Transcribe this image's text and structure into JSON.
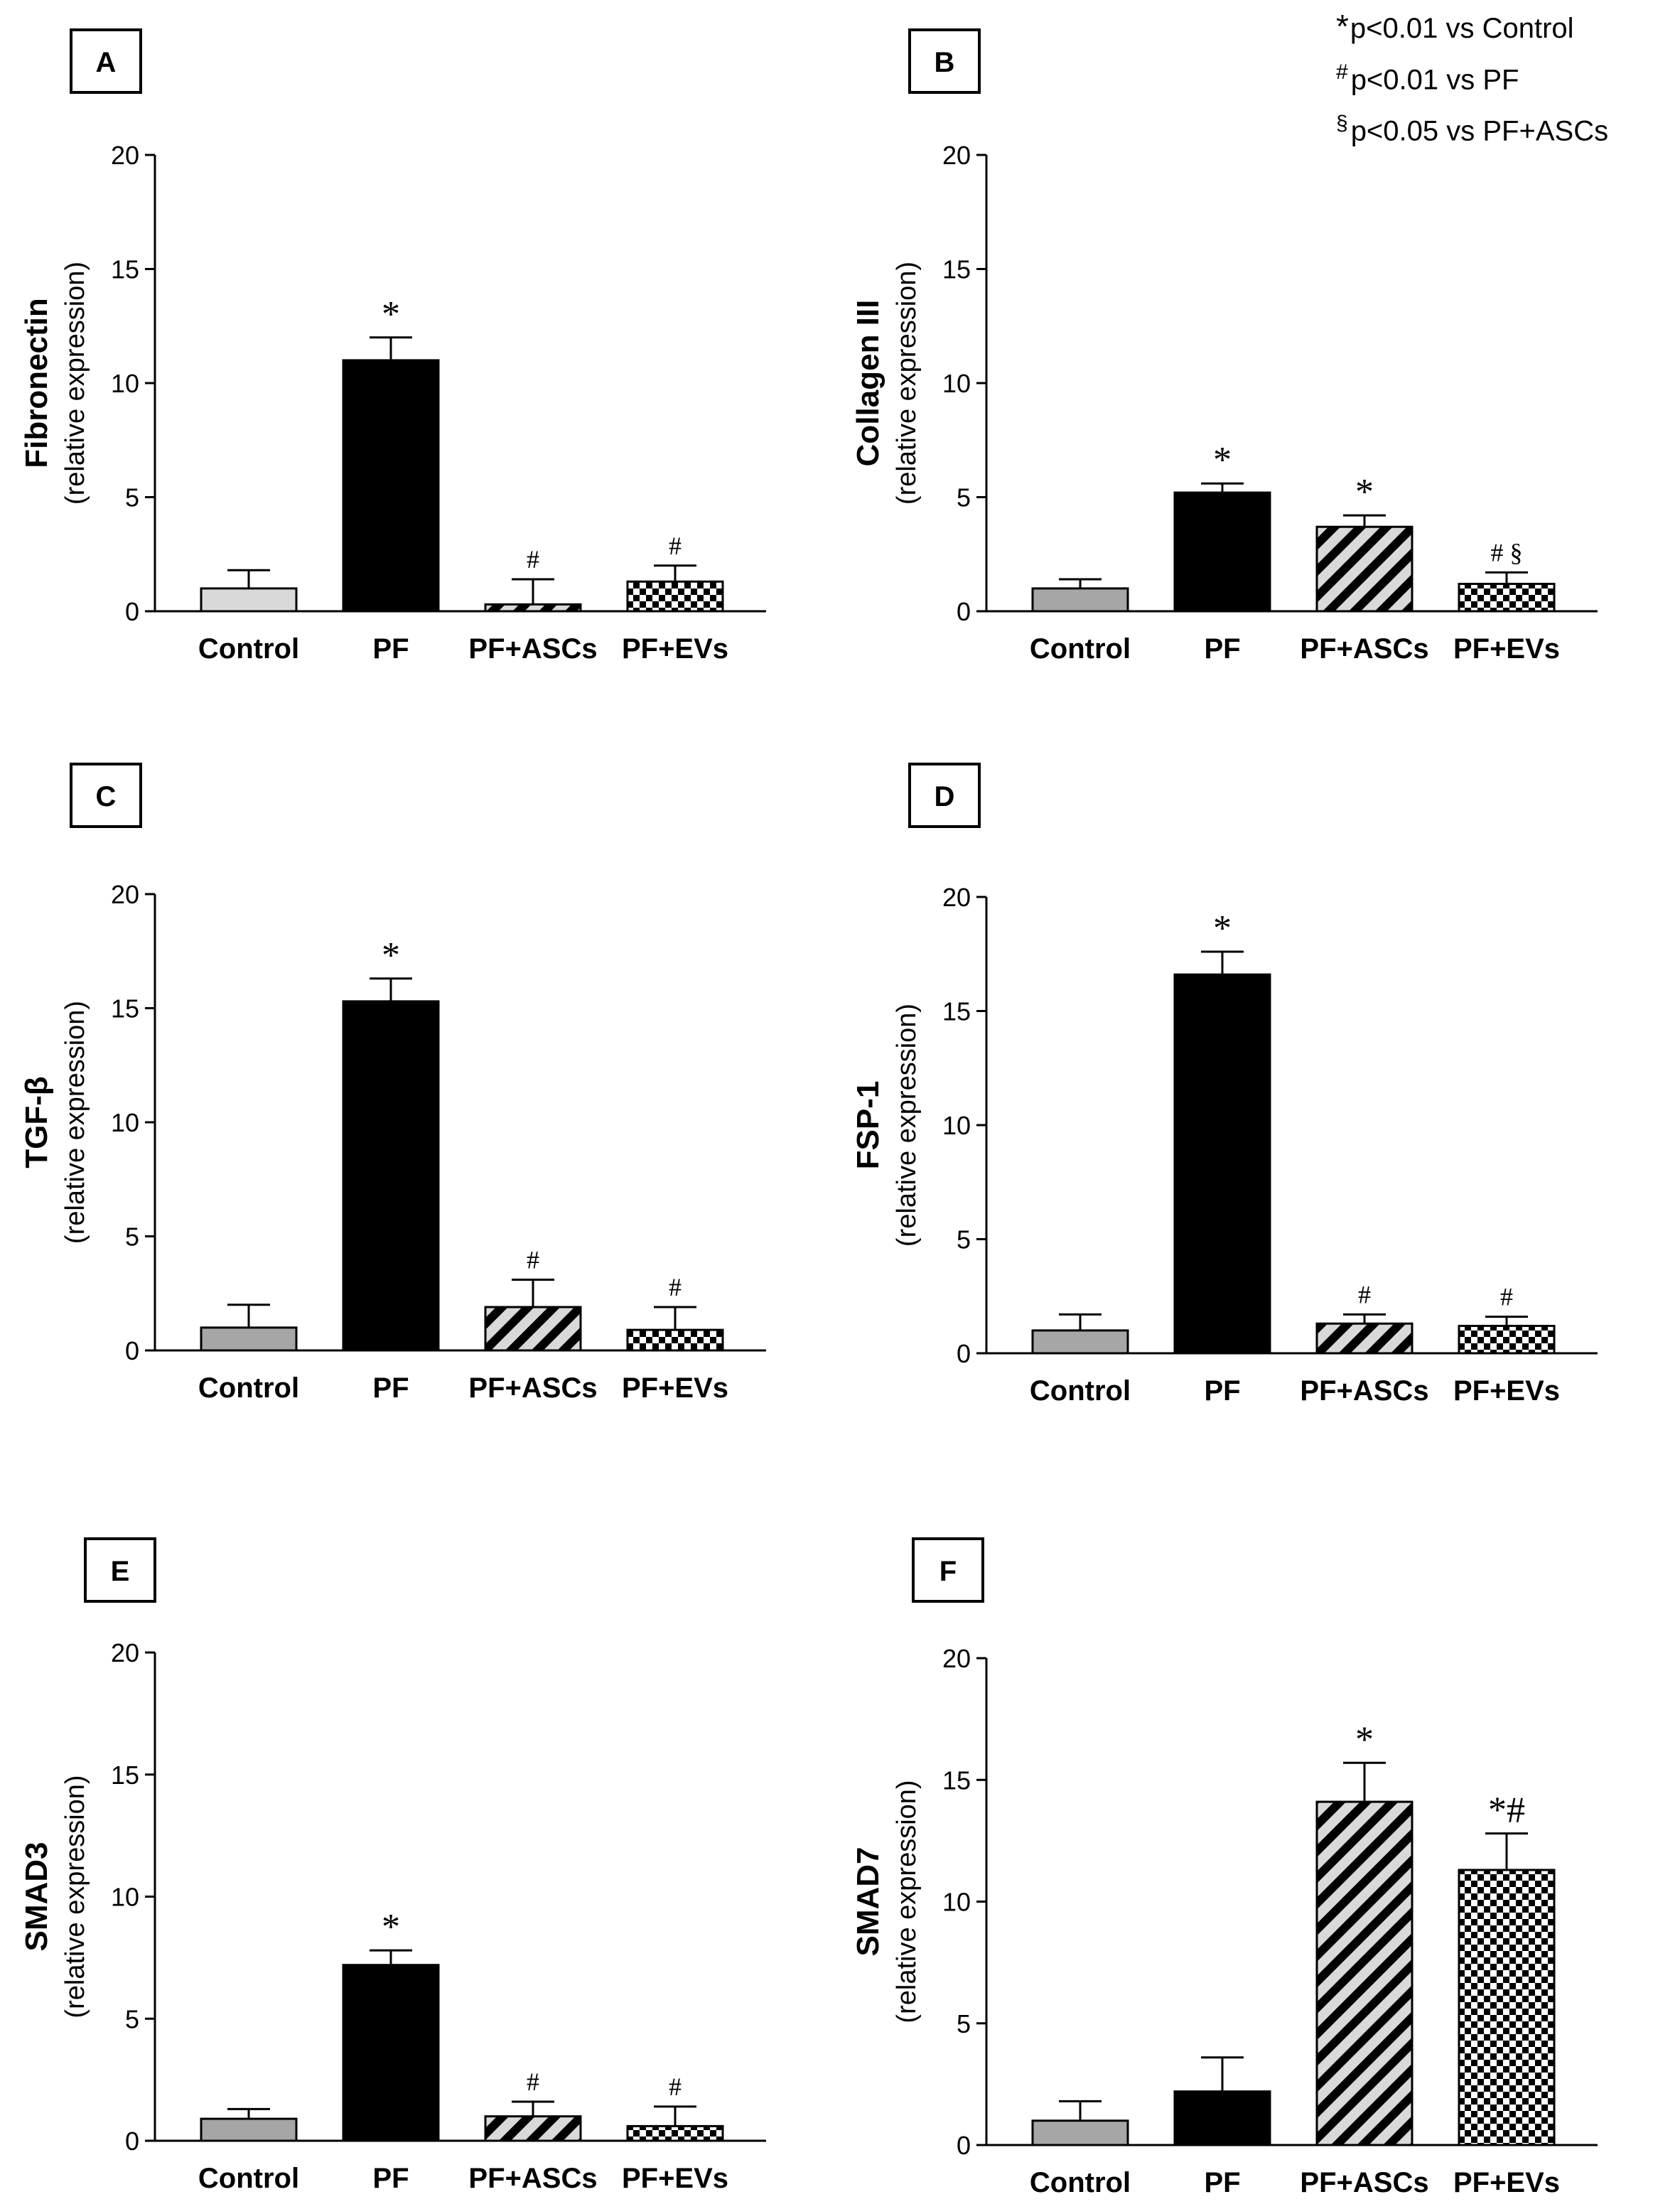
{
  "figure": {
    "legend": [
      {
        "symbol": "*",
        "text": "p<0.01 vs Control"
      },
      {
        "symbol": "#",
        "text": "p<0.01 vs PF"
      },
      {
        "symbol": "§",
        "text": "p<0.05 vs PF+ASCs"
      }
    ],
    "colors": {
      "control_light": "#d9d9d9",
      "control": "#a6a6a6",
      "pf": "#000000",
      "axis": "#000000"
    }
  },
  "chart_data": [
    {
      "panel": "A",
      "type": "bar",
      "categories": [
        "Control",
        "PF",
        "PF+ASCs",
        "PF+EVs"
      ],
      "values": [
        1.0,
        11.0,
        0.3,
        1.3
      ],
      "errors": [
        0.8,
        1.0,
        1.1,
        0.7
      ],
      "annotations": [
        "",
        "*",
        "#",
        "#"
      ],
      "patterns": [
        "light",
        "solid",
        "stripe",
        "check"
      ],
      "ylabel": "Fibronectin",
      "ylabel_sub": "(relative expression)",
      "ylim": [
        0,
        20
      ],
      "yticks": [
        0,
        5,
        10,
        15,
        20
      ]
    },
    {
      "panel": "B",
      "type": "bar",
      "categories": [
        "Control",
        "PF",
        "PF+ASCs",
        "PF+EVs"
      ],
      "values": [
        1.0,
        5.2,
        3.7,
        1.2
      ],
      "errors": [
        0.4,
        0.4,
        0.5,
        0.5
      ],
      "annotations": [
        "",
        "*",
        "*",
        "# §"
      ],
      "patterns": [
        "gray",
        "solid",
        "stripe",
        "check"
      ],
      "ylabel": "Collagen III",
      "ylabel_sub": "(relative expression)",
      "ylim": [
        0,
        20
      ],
      "yticks": [
        0,
        5,
        10,
        15,
        20
      ]
    },
    {
      "panel": "C",
      "type": "bar",
      "categories": [
        "Control",
        "PF",
        "PF+ASCs",
        "PF+EVs"
      ],
      "values": [
        1.0,
        15.3,
        1.9,
        0.9
      ],
      "errors": [
        1.0,
        1.0,
        1.2,
        1.0
      ],
      "annotations": [
        "",
        "*",
        "#",
        "#"
      ],
      "patterns": [
        "gray",
        "solid",
        "stripe",
        "check"
      ],
      "ylabel": "TGF-β",
      "ylabel_sub": "(relative expression)",
      "ylim": [
        0,
        20
      ],
      "yticks": [
        0,
        5,
        10,
        15,
        20
      ]
    },
    {
      "panel": "D",
      "type": "bar",
      "categories": [
        "Control",
        "PF",
        "PF+ASCs",
        "PF+EVs"
      ],
      "values": [
        1.0,
        16.6,
        1.3,
        1.2
      ],
      "errors": [
        0.7,
        1.0,
        0.4,
        0.4
      ],
      "annotations": [
        "",
        "*",
        "#",
        "#"
      ],
      "patterns": [
        "gray",
        "solid",
        "stripe",
        "check"
      ],
      "ylabel": "FSP-1",
      "ylabel_sub": "(relative expression)",
      "ylim": [
        0,
        20
      ],
      "yticks": [
        0,
        5,
        10,
        15,
        20
      ]
    },
    {
      "panel": "E",
      "type": "bar",
      "categories": [
        "Control",
        "PF",
        "PF+ASCs",
        "PF+EVs"
      ],
      "values": [
        0.9,
        7.2,
        1.0,
        0.6
      ],
      "errors": [
        0.4,
        0.6,
        0.6,
        0.8
      ],
      "annotations": [
        "",
        "*",
        "#",
        "#"
      ],
      "patterns": [
        "gray",
        "solid",
        "stripe",
        "check"
      ],
      "ylabel": "SMAD3",
      "ylabel_sub": "(relative expression)",
      "ylim": [
        0,
        20
      ],
      "yticks": [
        0,
        5,
        10,
        15,
        20
      ]
    },
    {
      "panel": "F",
      "type": "bar",
      "categories": [
        "Control",
        "PF",
        "PF+ASCs",
        "PF+EVs"
      ],
      "values": [
        1.0,
        2.2,
        14.1,
        11.3
      ],
      "errors": [
        0.8,
        1.4,
        1.6,
        1.5
      ],
      "annotations": [
        "",
        "",
        "*",
        "*#"
      ],
      "patterns": [
        "gray",
        "solid",
        "stripe",
        "check"
      ],
      "ylabel": "SMAD7",
      "ylabel_sub": "(relative expression)",
      "ylim": [
        0,
        20
      ],
      "yticks": [
        0,
        5,
        10,
        15,
        20
      ]
    }
  ]
}
